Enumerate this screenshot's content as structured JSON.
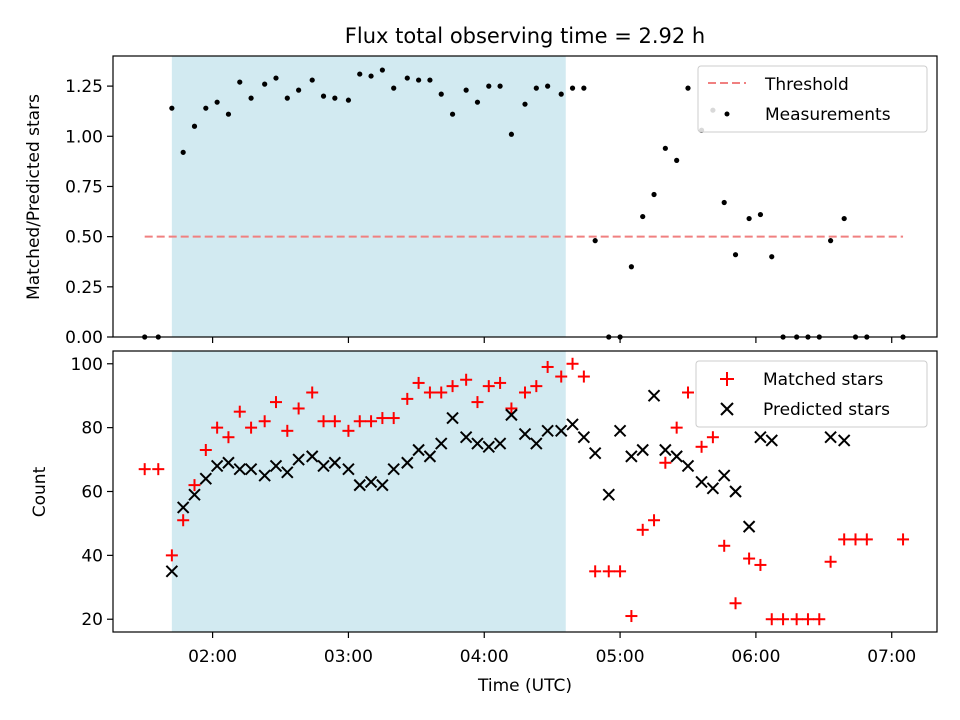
{
  "title": "Flux total observing time = 2.92 h",
  "colors": {
    "threshold": "#f08080",
    "measurement": "#000000",
    "matched": "#ff0000",
    "predicted": "#000000",
    "shade": "#add8e6"
  },
  "chart_data": [
    {
      "type": "scatter",
      "panel": "top",
      "title": "Flux total observing time = 2.92 h",
      "xlabel": "",
      "ylabel": "Matched/Predicted stars",
      "xlim": [
        "01:16",
        "07:20"
      ],
      "ylim": [
        0,
        1.4
      ],
      "yticks": [
        0.0,
        0.25,
        0.5,
        0.75,
        1.0,
        1.25
      ],
      "ytick_labels": [
        "0.00",
        "0.25",
        "0.50",
        "0.75",
        "1.00",
        "1.25"
      ],
      "shaded_interval": [
        "01:42",
        "04:36"
      ],
      "threshold": {
        "name": "Threshold",
        "y": 0.5,
        "x_range": [
          "01:30",
          "07:05"
        ]
      },
      "legend": {
        "location": "upper right",
        "entries": [
          "Threshold",
          "Measurements"
        ]
      },
      "series": [
        {
          "name": "Measurements",
          "x": [
            "01:30",
            "01:36",
            "01:42",
            "01:47",
            "01:52",
            "01:57",
            "02:02",
            "02:07",
            "02:12",
            "02:17",
            "02:23",
            "02:28",
            "02:33",
            "02:38",
            "02:44",
            "02:49",
            "02:54",
            "03:00",
            "03:05",
            "03:10",
            "03:15",
            "03:20",
            "03:26",
            "03:31",
            "03:36",
            "03:41",
            "03:46",
            "03:52",
            "03:57",
            "04:02",
            "04:07",
            "04:12",
            "04:18",
            "04:23",
            "04:28",
            "04:34",
            "04:39",
            "04:44",
            "04:49",
            "04:55",
            "05:00",
            "05:05",
            "05:10",
            "05:15",
            "05:20",
            "05:25",
            "05:30",
            "05:36",
            "05:41",
            "05:46",
            "05:51",
            "05:57",
            "06:02",
            "06:07",
            "06:12",
            "06:18",
            "06:23",
            "06:28",
            "06:33",
            "06:39",
            "06:44",
            "06:49",
            "07:05"
          ],
          "y": [
            0,
            0,
            1.14,
            0.92,
            1.05,
            1.14,
            1.17,
            1.11,
            1.27,
            1.19,
            1.26,
            1.29,
            1.19,
            1.23,
            1.28,
            1.2,
            1.19,
            1.18,
            1.31,
            1.3,
            1.33,
            1.24,
            1.29,
            1.28,
            1.28,
            1.21,
            1.11,
            1.23,
            1.17,
            1.25,
            1.25,
            1.01,
            1.16,
            1.24,
            1.25,
            1.21,
            1.24,
            1.24,
            0.48,
            0,
            0,
            0.35,
            0.6,
            0.71,
            0.94,
            0.88,
            1.24,
            1.03,
            1.13,
            0.67,
            0.41,
            0.59,
            0.61,
            0.4,
            0,
            0,
            0,
            0,
            0.48,
            0.59,
            0,
            0,
            0
          ]
        }
      ]
    },
    {
      "type": "scatter",
      "panel": "bottom",
      "xlabel": "Time (UTC)",
      "ylabel": "Count",
      "xlim": [
        "01:16",
        "07:20"
      ],
      "ylim": [
        16,
        104
      ],
      "xticks": [
        "02:00",
        "03:00",
        "04:00",
        "05:00",
        "06:00",
        "07:00"
      ],
      "yticks": [
        20,
        40,
        60,
        80,
        100
      ],
      "shaded_interval": [
        "01:42",
        "04:36"
      ],
      "legend": {
        "location": "upper right",
        "entries": [
          "Matched stars",
          "Predicted stars"
        ]
      },
      "series": [
        {
          "name": "Matched stars",
          "marker": "+",
          "x": [
            "01:30",
            "01:36",
            "01:42",
            "01:47",
            "01:52",
            "01:57",
            "02:02",
            "02:07",
            "02:12",
            "02:17",
            "02:23",
            "02:28",
            "02:33",
            "02:38",
            "02:44",
            "02:49",
            "02:54",
            "03:00",
            "03:05",
            "03:10",
            "03:15",
            "03:20",
            "03:26",
            "03:31",
            "03:36",
            "03:41",
            "03:46",
            "03:52",
            "03:57",
            "04:02",
            "04:07",
            "04:12",
            "04:18",
            "04:23",
            "04:28",
            "04:34",
            "04:39",
            "04:44",
            "04:49",
            "04:55",
            "05:00",
            "05:05",
            "05:10",
            "05:15",
            "05:20",
            "05:25",
            "05:30",
            "05:36",
            "05:41",
            "05:46",
            "05:51",
            "05:57",
            "06:02",
            "06:07",
            "06:12",
            "06:18",
            "06:23",
            "06:28",
            "06:33",
            "06:39",
            "06:44",
            "06:49",
            "07:05"
          ],
          "y": [
            67,
            67,
            40,
            51,
            62,
            73,
            80,
            77,
            85,
            80,
            82,
            88,
            79,
            86,
            91,
            82,
            82,
            79,
            82,
            82,
            83,
            83,
            89,
            94,
            91,
            91,
            93,
            95,
            88,
            93,
            94,
            86,
            91,
            93,
            99,
            96,
            100,
            96,
            35,
            35,
            35,
            21,
            48,
            51,
            69,
            80,
            91,
            74,
            77,
            43,
            25,
            39,
            37,
            20,
            20,
            20,
            20,
            20,
            38,
            45,
            45,
            45,
            45
          ]
        },
        {
          "name": "Predicted stars",
          "marker": "x",
          "x": [
            "01:42",
            "01:47",
            "01:52",
            "01:57",
            "02:02",
            "02:07",
            "02:12",
            "02:17",
            "02:23",
            "02:28",
            "02:33",
            "02:38",
            "02:44",
            "02:49",
            "02:54",
            "03:00",
            "03:05",
            "03:10",
            "03:15",
            "03:20",
            "03:26",
            "03:31",
            "03:36",
            "03:41",
            "03:46",
            "03:52",
            "03:57",
            "04:02",
            "04:07",
            "04:12",
            "04:18",
            "04:23",
            "04:28",
            "04:34",
            "04:39",
            "04:44",
            "04:49",
            "04:55",
            "05:00",
            "05:05",
            "05:10",
            "05:15",
            "05:20",
            "05:25",
            "05:30",
            "05:36",
            "05:41",
            "05:46",
            "05:51",
            "05:57",
            "06:02",
            "06:07",
            "06:33",
            "06:39"
          ],
          "y": [
            35,
            55,
            59,
            64,
            68,
            69,
            67,
            67,
            65,
            68,
            66,
            70,
            71,
            68,
            69,
            67,
            62,
            63,
            62,
            67,
            69,
            73,
            71,
            75,
            83,
            77,
            75,
            74,
            75,
            84,
            78,
            75,
            79,
            79,
            81,
            77,
            72,
            59,
            79,
            71,
            73,
            90,
            73,
            71,
            68,
            63,
            61,
            65,
            60,
            49,
            77,
            76,
            77,
            76
          ]
        }
      ]
    }
  ]
}
